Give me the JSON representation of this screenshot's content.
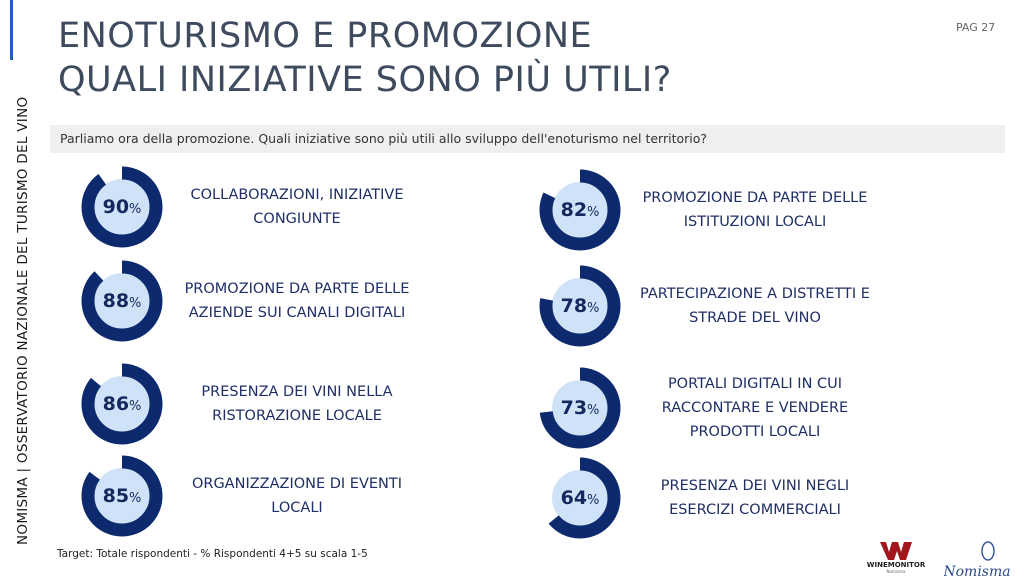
{
  "sidebar_text": "NOMISMA | OSSERVATORIO NAZIONALE DEL TURISMO DEL VINO",
  "title_line1": "ENOTURISMO E PROMOZIONE",
  "title_line2": "QUALI INIZIATIVE SONO PIÙ UTILI?",
  "page_label": "PAG 27",
  "question": "Parliamo ora della promozione. Quali iniziative sono più utili allo sviluppo dell'enoturismo nel territorio?",
  "footer": "Target: Totale rispondenti - % Rispondenti 4+5 su scala 1-5",
  "logos": {
    "winemonitor": "WINEMONITOR Nomisma",
    "nomisma": "Nomisma"
  },
  "colors": {
    "ring": "#0d2a6e",
    "inner": "#cfe2f7",
    "text": "#1f2f66"
  },
  "chart_data": {
    "type": "pie",
    "title": "Quali iniziative sono più utili?",
    "unit": "%",
    "items": [
      {
        "label": "COLLABORAZIONI, INIZIATIVE\nCONGIUNTE",
        "value": 90
      },
      {
        "label": "PROMOZIONE DA PARTE DELLE\nAZIENDE SUI CANALI DIGITALI",
        "value": 88
      },
      {
        "label": "PRESENZA DEI VINI NELLA\nRISTORAZIONE LOCALE",
        "value": 86
      },
      {
        "label": "ORGANIZZAZIONE DI EVENTI\nLOCALI",
        "value": 85
      },
      {
        "label": "PROMOZIONE DA PARTE DELLE\nISTITUZIONI LOCALI",
        "value": 82
      },
      {
        "label": "PARTECIPAZIONE A DISTRETTI E\nSTRADE DEL VINO",
        "value": 78
      },
      {
        "label": "PORTALI DIGITALI IN CUI\nRACCONTARE E VENDERE\nPRODOTTI LOCALI",
        "value": 73
      },
      {
        "label": "PRESENZA DEI VINI NEGLI\nESERCIZI COMMERCIALI",
        "value": 64
      }
    ]
  }
}
